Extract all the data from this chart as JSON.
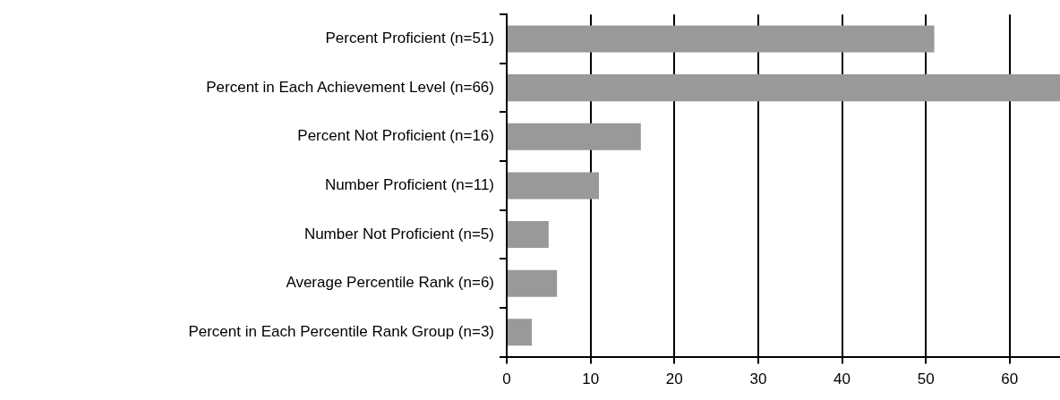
{
  "chart_data": {
    "type": "bar",
    "orientation": "horizontal",
    "categories": [
      "Percent Proficient (n=51)",
      "Percent in Each Achievement Level (n=66)",
      "Percent Not Proficient (n=16)",
      "Number Proficient (n=11)",
      "Number Not Proficient (n=5)",
      "Average Percentile Rank (n=6)",
      "Percent in Each Percentile Rank Group (n=3)"
    ],
    "values": [
      51,
      66,
      16,
      11,
      5,
      6,
      3
    ],
    "color": "#999999",
    "xlim": [
      0,
      66
    ],
    "xticks": [
      0,
      10,
      20,
      30,
      40,
      50,
      60
    ],
    "grid": "x",
    "legend": false
  }
}
